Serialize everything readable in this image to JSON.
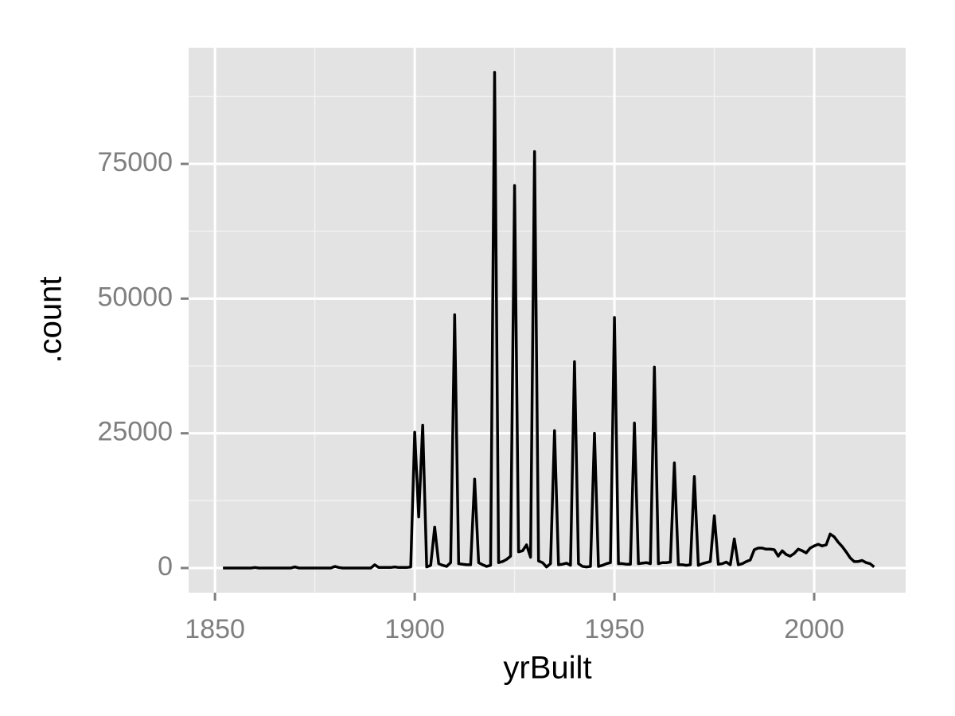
{
  "chart_data": {
    "type": "line",
    "x_label": "yrBuilt",
    "y_label": ".count",
    "x": [
      1852,
      1853,
      1854,
      1855,
      1856,
      1857,
      1858,
      1859,
      1860,
      1861,
      1862,
      1863,
      1864,
      1865,
      1866,
      1867,
      1868,
      1869,
      1870,
      1871,
      1872,
      1873,
      1874,
      1875,
      1876,
      1877,
      1878,
      1879,
      1880,
      1881,
      1882,
      1883,
      1884,
      1885,
      1886,
      1887,
      1888,
      1889,
      1890,
      1891,
      1892,
      1893,
      1894,
      1895,
      1896,
      1897,
      1898,
      1899,
      1900,
      1901,
      1902,
      1903,
      1904,
      1905,
      1906,
      1907,
      1908,
      1909,
      1910,
      1911,
      1912,
      1913,
      1914,
      1915,
      1916,
      1917,
      1918,
      1919,
      1920,
      1921,
      1922,
      1923,
      1924,
      1925,
      1926,
      1927,
      1928,
      1929,
      1930,
      1931,
      1932,
      1933,
      1934,
      1935,
      1936,
      1937,
      1938,
      1939,
      1940,
      1941,
      1942,
      1943,
      1944,
      1945,
      1946,
      1947,
      1948,
      1949,
      1950,
      1951,
      1952,
      1953,
      1954,
      1955,
      1956,
      1957,
      1958,
      1959,
      1960,
      1961,
      1962,
      1963,
      1964,
      1965,
      1966,
      1967,
      1968,
      1969,
      1970,
      1971,
      1972,
      1973,
      1974,
      1975,
      1976,
      1977,
      1978,
      1979,
      1980,
      1981,
      1982,
      1983,
      1984,
      1985,
      1986,
      1987,
      1988,
      1989,
      1990,
      1991,
      1992,
      1993,
      1994,
      1995,
      1996,
      1997,
      1998,
      1999,
      2000,
      2001,
      2002,
      2003,
      2004,
      2005,
      2006,
      2007,
      2008,
      2009,
      2010,
      2011,
      2012,
      2013,
      2014,
      2015
    ],
    "values": [
      0,
      0,
      0,
      0,
      0,
      0,
      0,
      0,
      100,
      0,
      0,
      0,
      0,
      0,
      0,
      0,
      0,
      0,
      200,
      0,
      0,
      0,
      0,
      0,
      0,
      0,
      0,
      0,
      300,
      100,
      0,
      0,
      0,
      0,
      0,
      0,
      0,
      0,
      600,
      100,
      100,
      100,
      100,
      200,
      100,
      100,
      100,
      200,
      25200,
      9500,
      26500,
      200,
      500,
      7600,
      800,
      500,
      300,
      1000,
      47000,
      800,
      700,
      600,
      600,
      16500,
      1000,
      600,
      300,
      500,
      92000,
      1000,
      1200,
      1600,
      2200,
      71000,
      3000,
      3200,
      4300,
      2000,
      77300,
      1300,
      1000,
      200,
      800,
      25500,
      600,
      700,
      900,
      500,
      38300,
      800,
      300,
      200,
      300,
      25000,
      300,
      500,
      800,
      1000,
      46500,
      800,
      800,
      700,
      700,
      26900,
      800,
      900,
      1000,
      800,
      37300,
      800,
      1000,
      1000,
      1100,
      19500,
      600,
      600,
      500,
      600,
      17000,
      500,
      800,
      1000,
      1200,
      9700,
      700,
      800,
      1100,
      600,
      5400,
      600,
      800,
      1200,
      1500,
      3400,
      3700,
      3700,
      3500,
      3500,
      3400,
      2200,
      3200,
      2500,
      2200,
      2700,
      3500,
      3200,
      2800,
      3700,
      4100,
      4400,
      4100,
      4300,
      6300,
      5800,
      4800,
      4000,
      3000,
      1900,
      1200,
      1200,
      1400,
      1000,
      800,
      200
    ],
    "color": "#000000",
    "xlim": [
      1843.4,
      2022.9
    ],
    "xticks": [
      1850,
      1900,
      1950,
      2000
    ],
    "ylim": [
      -4580,
      96560
    ],
    "yticks": [
      0,
      25000,
      50000,
      75000
    ],
    "grid": true,
    "minor_grid": true
  }
}
